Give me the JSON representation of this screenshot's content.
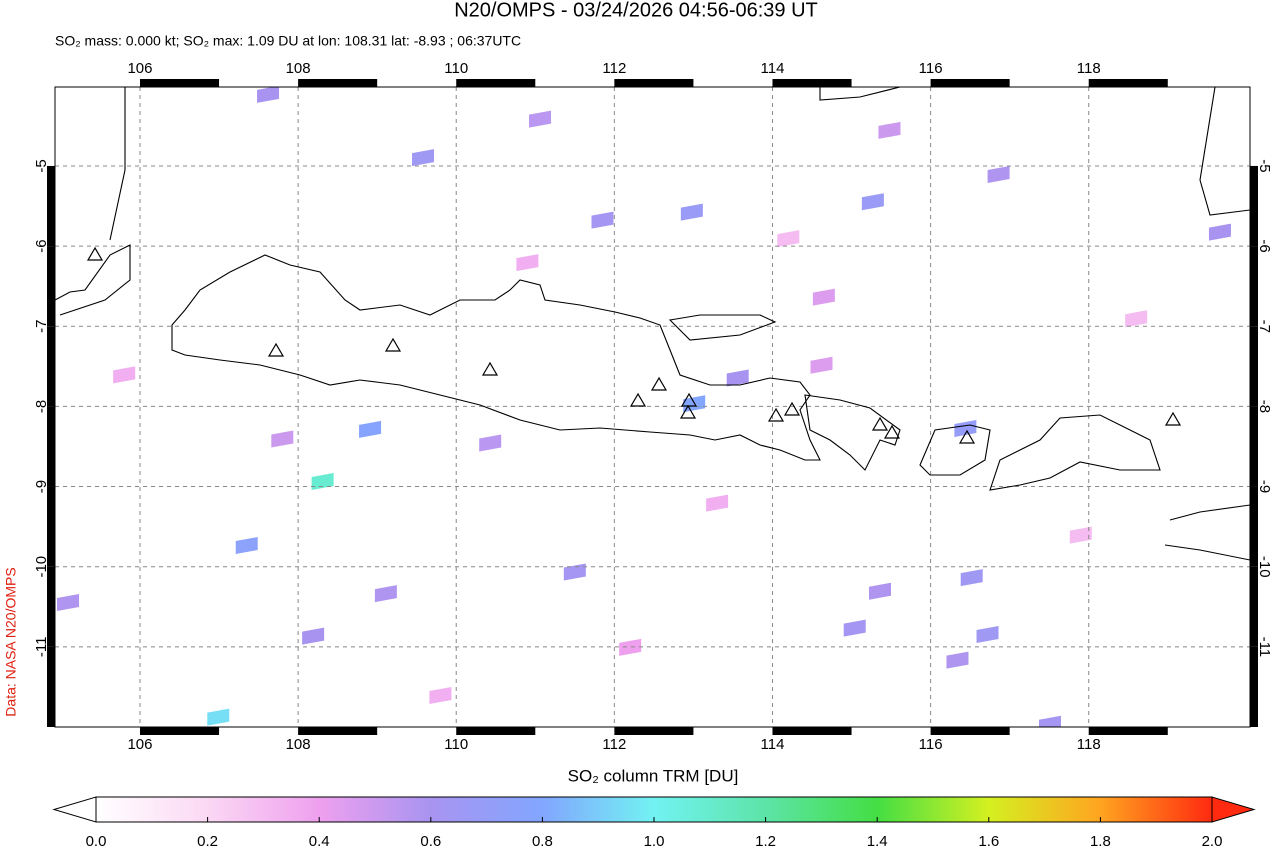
{
  "chart_data": {
    "type": "map",
    "title": "N20/OMPS - 03/24/2026 04:56-06:39 UT",
    "subtitle": "SO₂ mass: 0.000 kt; SO₂ max: 1.09 DU at lon: 108.31 lat: -8.93 ; 06:37UTC",
    "credit": "Data: NASA N20/OMPS",
    "xlim": [
      104.925,
      120.04
    ],
    "ylim": [
      -12.0,
      -4.015
    ],
    "xticks": [
      106,
      108,
      110,
      112,
      114,
      116,
      118
    ],
    "yticks": [
      -5,
      -6,
      -7,
      -8,
      -9,
      -10,
      -11
    ],
    "grid": true,
    "cells": [
      {
        "lon": 109.58,
        "lat": -4.89,
        "value": 0.65
      },
      {
        "lon": 111.85,
        "lat": -5.67,
        "value": 0.62
      },
      {
        "lon": 112.98,
        "lat": -5.57,
        "value": 0.68
      },
      {
        "lon": 115.27,
        "lat": -5.44,
        "value": 0.68
      },
      {
        "lon": 108.91,
        "lat": -8.28,
        "value": 0.78
      },
      {
        "lon": 108.31,
        "lat": -8.93,
        "value": 1.09
      },
      {
        "lon": 106.99,
        "lat": -11.87,
        "value": 0.95
      },
      {
        "lon": 107.35,
        "lat": -9.73,
        "value": 0.75
      },
      {
        "lon": 111.5,
        "lat": -10.06,
        "value": 0.62
      },
      {
        "lon": 116.52,
        "lat": -10.13,
        "value": 0.65
      },
      {
        "lon": 116.72,
        "lat": -10.84,
        "value": 0.65
      },
      {
        "lon": 117.51,
        "lat": -11.96,
        "value": 0.62
      },
      {
        "lon": 115.04,
        "lat": -10.76,
        "value": 0.62
      },
      {
        "lon": 116.34,
        "lat": -11.16,
        "value": 0.58
      },
      {
        "lon": 115.36,
        "lat": -10.3,
        "value": 0.58
      },
      {
        "lon": 113.01,
        "lat": -7.96,
        "value": 0.8
      },
      {
        "lon": 116.44,
        "lat": -8.27,
        "value": 0.7
      },
      {
        "lon": 113.56,
        "lat": -7.64,
        "value": 0.6
      },
      {
        "lon": 105.09,
        "lat": -10.44,
        "value": 0.58
      },
      {
        "lon": 109.11,
        "lat": -10.33,
        "value": 0.58
      },
      {
        "lon": 108.19,
        "lat": -10.86,
        "value": 0.6
      },
      {
        "lon": 107.62,
        "lat": -4.1,
        "value": 0.6
      },
      {
        "lon": 119.66,
        "lat": -5.82,
        "value": 0.6
      },
      {
        "lon": 116.86,
        "lat": -5.1,
        "value": 0.58
      },
      {
        "lon": 110.43,
        "lat": -8.45,
        "value": 0.55
      },
      {
        "lon": 111.06,
        "lat": -4.41,
        "value": 0.55
      },
      {
        "lon": 115.48,
        "lat": -4.55,
        "value": 0.5
      },
      {
        "lon": 114.65,
        "lat": -6.63,
        "value": 0.45
      },
      {
        "lon": 114.62,
        "lat": -7.48,
        "value": 0.45
      },
      {
        "lon": 107.8,
        "lat": -8.4,
        "value": 0.5
      },
      {
        "lon": 110.9,
        "lat": -6.2,
        "value": 0.35
      },
      {
        "lon": 113.3,
        "lat": -9.2,
        "value": 0.35
      },
      {
        "lon": 117.9,
        "lat": -9.6,
        "value": 0.3
      },
      {
        "lon": 105.8,
        "lat": -7.6,
        "value": 0.35
      },
      {
        "lon": 112.2,
        "lat": -11.0,
        "value": 0.4
      },
      {
        "lon": 118.6,
        "lat": -6.9,
        "value": 0.3
      },
      {
        "lon": 109.8,
        "lat": -11.6,
        "value": 0.35
      },
      {
        "lon": 114.2,
        "lat": -5.9,
        "value": 0.3
      }
    ],
    "colorbar": {
      "label": "SO₂ column TRM [DU]",
      "lim": [
        0,
        2
      ],
      "ticks": [
        {
          "value": 0,
          "label": "0.0"
        },
        {
          "value": 0.2,
          "label": "0.2"
        },
        {
          "value": 0.4,
          "label": "0.4"
        },
        {
          "value": 0.6,
          "label": "0.6"
        },
        {
          "value": 0.8,
          "label": "0.8"
        },
        {
          "value": 1,
          "label": "1.0"
        },
        {
          "value": 1.2,
          "label": "1.2"
        },
        {
          "value": 1.4,
          "label": "1.4"
        },
        {
          "value": 1.6,
          "label": "1.6"
        },
        {
          "value": 1.8,
          "label": "1.8"
        },
        {
          "value": 2,
          "label": "2.0"
        }
      ],
      "colors": [
        "#ffffff",
        "#fbd8f4",
        "#eea0ee",
        "#a894f0",
        "#82a6ff",
        "#72f2f2",
        "#5ce4a8",
        "#44de44",
        "#d4f020",
        "#ffa420",
        "#ff2a10"
      ]
    }
  }
}
